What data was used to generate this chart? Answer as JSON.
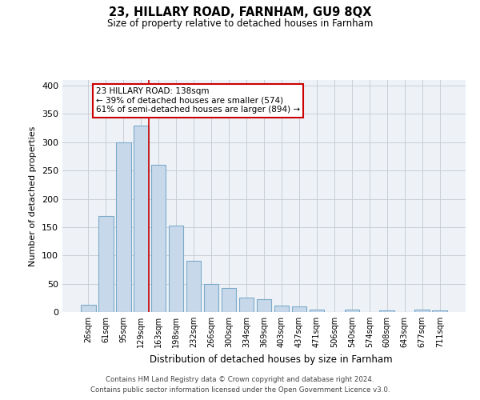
{
  "title": "23, HILLARY ROAD, FARNHAM, GU9 8QX",
  "subtitle": "Size of property relative to detached houses in Farnham",
  "xlabel": "Distribution of detached houses by size in Farnham",
  "ylabel": "Number of detached properties",
  "categories": [
    "26sqm",
    "61sqm",
    "95sqm",
    "129sqm",
    "163sqm",
    "198sqm",
    "232sqm",
    "266sqm",
    "300sqm",
    "334sqm",
    "369sqm",
    "403sqm",
    "437sqm",
    "471sqm",
    "506sqm",
    "540sqm",
    "574sqm",
    "608sqm",
    "643sqm",
    "677sqm",
    "711sqm"
  ],
  "values": [
    13,
    170,
    300,
    330,
    260,
    152,
    91,
    50,
    42,
    26,
    22,
    11,
    10,
    4,
    0,
    4,
    0,
    3,
    0,
    4,
    3
  ],
  "bar_color": "#c8d8eb",
  "bar_edge_color": "#7aaac8",
  "vline_index": 3,
  "vline_color": "#cc0000",
  "annotation_line1": "23 HILLARY ROAD: 138sqm",
  "annotation_line2": "← 39% of detached houses are smaller (574)",
  "annotation_line3": "61% of semi-detached houses are larger (894) →",
  "annotation_box_facecolor": "#ffffff",
  "annotation_box_edgecolor": "#cc0000",
  "ylim": [
    0,
    410
  ],
  "yticks": [
    0,
    50,
    100,
    150,
    200,
    250,
    300,
    350,
    400
  ],
  "plot_bg_color": "#eef2f7",
  "footer_line1": "Contains HM Land Registry data © Crown copyright and database right 2024.",
  "footer_line2": "Contains public sector information licensed under the Open Government Licence v3.0."
}
